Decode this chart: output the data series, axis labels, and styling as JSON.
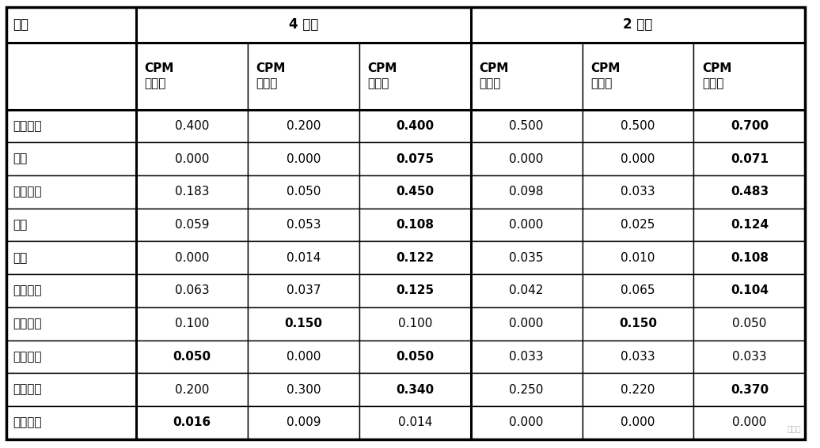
{
  "title_row": [
    "类别",
    "4 样本",
    "2 样本"
  ],
  "header_labels": [
    "CPM\n（小）",
    "CPM\n（中）",
    "CPM\n（大）",
    "CPM\n（小）",
    "CPM\n（中）",
    "CPM\n（大）"
  ],
  "row_labels": [
    "主要工艺",
    "释义",
    "商品品牌",
    "学科",
    "全名",
    "涉及领域",
    "主要作物",
    "所在国家",
    "病原类型",
    "首任总统"
  ],
  "data": [
    [
      "0.400",
      "0.200",
      "0.400",
      "0.500",
      "0.500",
      "0.700"
    ],
    [
      "0.000",
      "0.000",
      "0.075",
      "0.000",
      "0.000",
      "0.071"
    ],
    [
      "0.183",
      "0.050",
      "0.450",
      "0.098",
      "0.033",
      "0.483"
    ],
    [
      "0.059",
      "0.053",
      "0.108",
      "0.000",
      "0.025",
      "0.124"
    ],
    [
      "0.000",
      "0.014",
      "0.122",
      "0.035",
      "0.010",
      "0.108"
    ],
    [
      "0.063",
      "0.037",
      "0.125",
      "0.042",
      "0.065",
      "0.104"
    ],
    [
      "0.100",
      "0.150",
      "0.100",
      "0.000",
      "0.150",
      "0.050"
    ],
    [
      "0.050",
      "0.000",
      "0.050",
      "0.033",
      "0.033",
      "0.033"
    ],
    [
      "0.200",
      "0.300",
      "0.340",
      "0.250",
      "0.220",
      "0.370"
    ],
    [
      "0.016",
      "0.009",
      "0.014",
      "0.000",
      "0.000",
      "0.000"
    ]
  ],
  "bold_map": [
    [
      false,
      false,
      true,
      false,
      false,
      true
    ],
    [
      false,
      false,
      true,
      false,
      false,
      true
    ],
    [
      false,
      false,
      true,
      false,
      false,
      true
    ],
    [
      false,
      false,
      true,
      false,
      false,
      true
    ],
    [
      false,
      false,
      true,
      false,
      false,
      true
    ],
    [
      false,
      false,
      true,
      false,
      false,
      true
    ],
    [
      false,
      true,
      false,
      false,
      true,
      false
    ],
    [
      true,
      false,
      true,
      false,
      false,
      false
    ],
    [
      false,
      false,
      true,
      false,
      false,
      true
    ],
    [
      true,
      false,
      false,
      false,
      false,
      false
    ]
  ],
  "bg_color": "#ffffff",
  "border_color": "#000000",
  "text_color": "#000000",
  "figsize": [
    10.36,
    5.67
  ]
}
